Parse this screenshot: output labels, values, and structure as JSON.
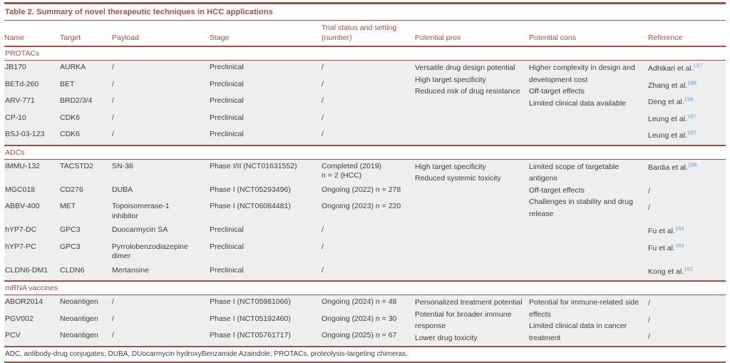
{
  "title": "Table 2.  Summary of novel therapeutic techniques in HCC applications",
  "columns": [
    "Name",
    "Target",
    "Payload",
    "Stage",
    "Trial status and setting\n(number)",
    "Potential pros",
    "Potential cons",
    "Reference"
  ],
  "sections": [
    {
      "label": "PROTACs",
      "pros": [
        "Versatile drug design potential",
        "High target specificity",
        "Reduced risk of drug resistance"
      ],
      "cons": [
        "Higher complexity in design and development cost",
        "Off-target effects",
        "Limited clinical data available"
      ],
      "rows": [
        {
          "name": "JB170",
          "target": "AURKA",
          "payload": "/",
          "stage": "Preclinical",
          "trial": "/",
          "ref": {
            "text": "Adhikari et al.",
            "sup": "157"
          }
        },
        {
          "name": "BETd-260",
          "target": "BET",
          "payload": "/",
          "stage": "Preclinical",
          "trial": "/",
          "ref": {
            "text": "Zhang et al.",
            "sup": "186"
          }
        },
        {
          "name": "ARV-771",
          "target": "BRD2/3/4",
          "payload": "/",
          "stage": "Preclinical",
          "trial": "/",
          "ref": {
            "text": "Deng et al.",
            "sup": "158"
          }
        },
        {
          "name": "CP-10",
          "target": "CDK6",
          "payload": "/",
          "stage": "Preclinical",
          "trial": "/",
          "ref": {
            "text": "Leung et al.",
            "sup": "187"
          }
        },
        {
          "name": "BSJ-03-123",
          "target": "CDK6",
          "payload": "/",
          "stage": "Preclinical",
          "trial": "/",
          "ref": {
            "text": "Leung et al.",
            "sup": "187"
          }
        }
      ]
    },
    {
      "label": "ADCs",
      "pros": [
        "High target specificity",
        "Reduced systemic toxicity"
      ],
      "cons": [
        "Limited scope of targetable antigens",
        "Off-target effects",
        "Challenges in stability and drug release"
      ],
      "rows": [
        {
          "name": "IMMU-132",
          "target": "TACSTD2",
          "payload": "SN-38",
          "stage": "Phase I/II (NCT01631552)",
          "trial": "Completed (2019)\nn = 2 (HCC)",
          "ref": {
            "text": "Bardia et al.",
            "sup": "188"
          }
        },
        {
          "name": "MGC018",
          "target": "CD276",
          "payload": "DUBA",
          "stage": "Phase I (NCT05293496)",
          "trial": "Ongoing (2022) n = 278",
          "ref": {
            "text": "/",
            "sup": ""
          }
        },
        {
          "name": "ABBV-400",
          "target": "MET",
          "payload": "Topoisomerase-1\ninhibitor",
          "stage": "Phase I (NCT06084481)",
          "trial": "Ongoing (2023) n = 220",
          "ref": {
            "text": "/",
            "sup": ""
          }
        },
        {
          "name": "hYP7-DC",
          "target": "GPC3",
          "payload": "Duocarmycin SA",
          "stage": "Preclinical",
          "trial": "/",
          "ref": {
            "text": "Fu et al.",
            "sup": "163"
          }
        },
        {
          "name": "hYP7-PC",
          "target": "GPC3",
          "payload": "Pyrrolobenzodiazepine\ndimer",
          "stage": "Preclinical",
          "trial": "/",
          "ref": {
            "text": "Fu et al.",
            "sup": "163"
          }
        },
        {
          "name": "CLDN6-DM1",
          "target": "CLDN6",
          "payload": "Mertansine",
          "stage": "Preclinical",
          "trial": "/",
          "ref": {
            "text": "Kong et al.",
            "sup": "162"
          }
        }
      ]
    },
    {
      "label": "mRNA vaccines",
      "pros": [
        "Personalized treatment potential",
        "Potential for broader immune response",
        "Lower drug toxicity"
      ],
      "cons": [
        "Potential for immune-related side effects",
        "Limited clinical data in cancer treatment"
      ],
      "rows": [
        {
          "name": "ABOR2014",
          "target": "Neoantigen",
          "payload": "/",
          "stage": "Phase I (NCT05981066)",
          "trial": "Ongoing (2024) n = 48",
          "ref": {
            "text": "/",
            "sup": ""
          }
        },
        {
          "name": "PGV002",
          "target": "Neoantigen",
          "payload": "/",
          "stage": "Phase I (NCT05192460)",
          "trial": "Ongoing (2024) n = 30",
          "ref": {
            "text": "/",
            "sup": ""
          }
        },
        {
          "name": "PCV",
          "target": "Neoantigen",
          "payload": "/",
          "stage": "Phase I (NCT05761717)",
          "trial": "Ongoing (2025) n = 67",
          "ref": {
            "text": "/",
            "sup": ""
          }
        }
      ]
    }
  ],
  "footnote": "ADC, antibody-drug conjugates; DUBA, DUocarmycin hydroxyBenzamide Azaindole; PROTACs, proteolysis-targeting chimeras.",
  "colors": {
    "accent": "#a94b47",
    "link": "#4aa0d8",
    "row_bg": "#eeeeef",
    "body_text": "#3c3c3c"
  }
}
